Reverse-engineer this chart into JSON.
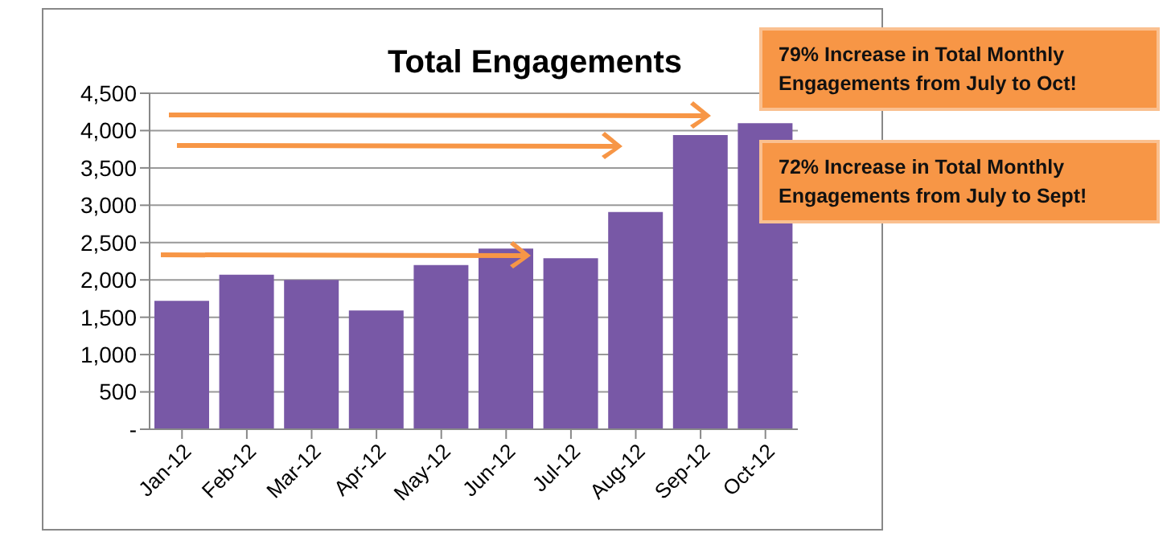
{
  "chart_data": {
    "type": "bar",
    "title": "Total Engagements",
    "categories": [
      "Jan-12",
      "Feb-12",
      "Mar-12",
      "Apr-12",
      "May-12",
      "Jun-12",
      "Jul-12",
      "Aug-12",
      "Sep-12",
      "Oct-12"
    ],
    "values": [
      1720,
      2070,
      2000,
      1590,
      2200,
      2420,
      2290,
      2910,
      3940,
      4100
    ],
    "color": "#7858a6",
    "ylim": [
      0,
      4500
    ],
    "yticks": [
      {
        "value": 0,
        "label": "-"
      },
      {
        "value": 500,
        "label": "500"
      },
      {
        "value": 1000,
        "label": "1,000"
      },
      {
        "value": 1500,
        "label": "1,500"
      },
      {
        "value": 2000,
        "label": "2,000"
      },
      {
        "value": 2500,
        "label": "2,500"
      },
      {
        "value": 3000,
        "label": "3,000"
      },
      {
        "value": 3500,
        "label": "3,500"
      },
      {
        "value": 4000,
        "label": "4,000"
      },
      {
        "value": 4500,
        "label": "4,500"
      }
    ],
    "grid": "y",
    "annotations": [
      "79% Increase in Total Monthly Engagements from July to Oct!",
      "72% Increase in Total Monthly Engagements from July to Sept!"
    ]
  }
}
